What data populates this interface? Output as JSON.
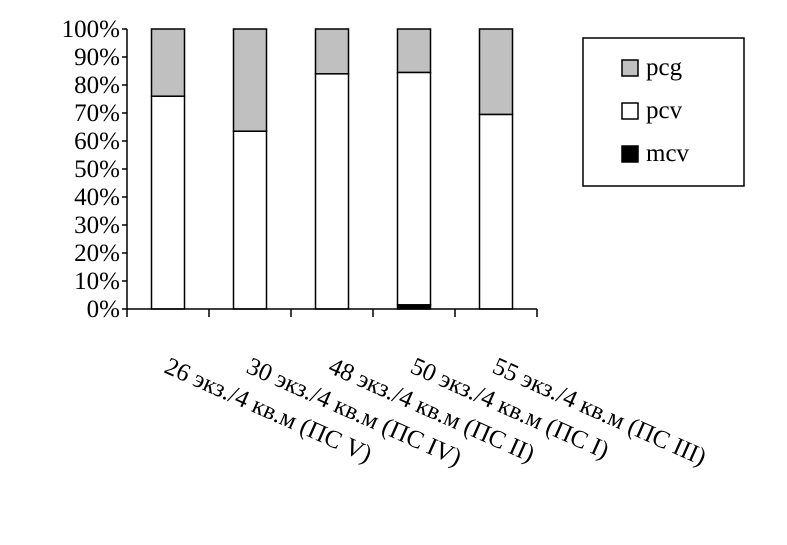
{
  "chart_data": {
    "type": "bar",
    "stacked": "percent",
    "categories": [
      "26 экз./4 кв.м (ПС V)",
      "30 экз./4 кв.м (ПС IV)",
      "48 экз./4 кв.м (ПС II)",
      "50 экз./4 кв.м (ПС I)",
      "55 экз./4 кв.м (ПС III)"
    ],
    "series": [
      {
        "name": "mcv",
        "color": "#000000",
        "values": [
          0,
          0,
          0,
          1.5,
          0
        ]
      },
      {
        "name": "pcv",
        "color": "#ffffff",
        "values": [
          76,
          63.5,
          84,
          83,
          69.5
        ]
      },
      {
        "name": "pcg",
        "color": "#c0c0c0",
        "values": [
          24,
          36.5,
          16,
          15.5,
          30.5
        ]
      }
    ],
    "ylim": [
      0,
      100
    ],
    "yticks": [
      "0%",
      "10%",
      "20%",
      "30%",
      "40%",
      "50%",
      "60%",
      "70%",
      "80%",
      "90%",
      "100%"
    ],
    "legend_order": [
      "pcg",
      "pcv",
      "mcv"
    ],
    "legend_position": "top-right",
    "grid": false
  }
}
